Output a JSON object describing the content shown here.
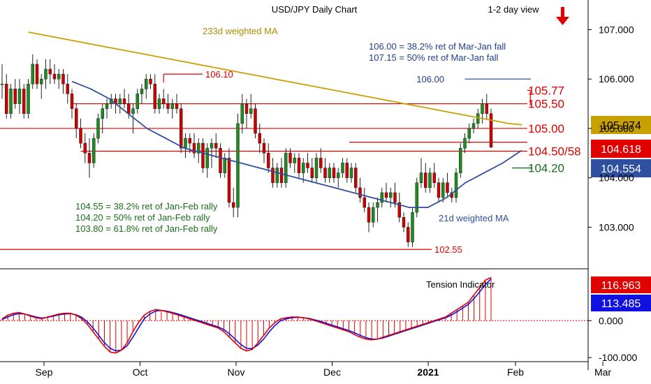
{
  "chart_data": [
    {
      "type": "candlestick",
      "title": "USD/JPY Daily Chart",
      "subtitle": "1-2 day view",
      "ylim": [
        102.2,
        107.6
      ],
      "yticks": [
        "107.000",
        "106.000",
        "105.000",
        "104.000",
        "103.000"
      ],
      "ytick_values": [
        107,
        106,
        105,
        104,
        103
      ],
      "xticks": [
        {
          "label": "Sep",
          "bar": 8
        },
        {
          "label": "Oct",
          "bar": 30
        },
        {
          "label": "Nov",
          "bar": 52
        },
        {
          "label": "Dec",
          "bar": 74
        },
        {
          "label": "2021",
          "bar": 96
        },
        {
          "label": "Feb",
          "bar": 116
        },
        {
          "label": "Mar",
          "bar": 136
        }
      ],
      "price_tags": [
        {
          "value": 105.074,
          "label": "105.074",
          "color": "#c8a000",
          "text_color": "#000000"
        },
        {
          "value": 104.618,
          "label": "104.618",
          "color": "#e00000",
          "text_color": "#ffffff"
        },
        {
          "value": 104.554,
          "label": "104.554",
          "color": "#2f4f9f",
          "text_color": "#ffffff"
        }
      ],
      "levels": [
        {
          "value": 105.5,
          "label": "105.50",
          "color": "#e00000",
          "from_bar": 16
        },
        {
          "value": 105.0,
          "label": "105.00",
          "color": "#e00000",
          "from_bar": -2
        },
        {
          "value": 104.54,
          "label": "104.50/58",
          "color": "#e00000",
          "from_bar": 18
        },
        {
          "value": 102.55,
          "label": "102.55",
          "color": "#e00000",
          "from_bar": -2
        },
        {
          "value": 106.1,
          "label": "106.10",
          "color": "#e00000",
          "from_bar": 37
        },
        {
          "value": 105.77,
          "label": "105.77",
          "color": "#e00000",
          "from_bar": 121
        },
        {
          "value": 106.0,
          "label": "106.00",
          "color": "#1f3f8f",
          "from_bar": 106
        },
        {
          "value": 104.2,
          "label": "104.20",
          "color": "#1a6e1a",
          "from_bar": 120
        }
      ],
      "annotations": {
        "ma233_label": "233d weighted MA",
        "ma21_label": "21d weighted MA",
        "blue_notes": [
          "106.00 = 38.2% ret of Mar-Jan fall",
          "107.15 = 50% ret of Mar-Jan fall"
        ],
        "green_notes": [
          "104.55 = 38.2% ret of Jan-Feb rally",
          "104.20 = 50% ret of Jan-Feb rally",
          "103.80 = 61.8% ret of Jan-Feb rally"
        ]
      },
      "colors": {
        "up": "#1e8c1e",
        "down": "#d00000",
        "ma233": "#c8a000",
        "ma21": "#2f4f9f",
        "level": "#e00000"
      },
      "ohlc": [
        [
          105.9,
          106.3,
          105.6,
          105.9
        ],
        [
          105.9,
          106.1,
          105.2,
          105.3
        ],
        [
          105.3,
          105.9,
          105.2,
          105.8
        ],
        [
          105.8,
          106.0,
          105.4,
          105.5
        ],
        [
          105.5,
          106.0,
          105.3,
          105.8
        ],
        [
          105.8,
          105.9,
          105.2,
          105.3
        ],
        [
          105.3,
          106.0,
          105.2,
          105.9
        ],
        [
          105.9,
          106.5,
          105.8,
          106.3
        ],
        [
          106.3,
          106.4,
          105.8,
          105.9
        ],
        [
          105.9,
          106.1,
          105.6,
          106.0
        ],
        [
          106.0,
          106.4,
          105.8,
          106.2
        ],
        [
          106.2,
          106.4,
          105.9,
          106.1
        ],
        [
          106.1,
          106.3,
          105.9,
          106.0
        ],
        [
          106.0,
          106.2,
          105.8,
          106.1
        ],
        [
          106.1,
          106.2,
          105.7,
          105.9
        ],
        [
          105.9,
          106.1,
          105.5,
          105.7
        ],
        [
          105.7,
          105.8,
          105.2,
          105.4
        ],
        [
          105.4,
          105.5,
          104.8,
          105.0
        ],
        [
          105.0,
          105.2,
          104.6,
          104.7
        ],
        [
          104.7,
          104.9,
          104.3,
          104.5
        ],
        [
          104.5,
          104.8,
          104.0,
          104.3
        ],
        [
          104.3,
          104.9,
          104.2,
          104.8
        ],
        [
          104.8,
          105.3,
          104.7,
          105.2
        ],
        [
          105.2,
          105.5,
          104.9,
          105.4
        ],
        [
          105.4,
          105.6,
          105.2,
          105.5
        ],
        [
          105.5,
          105.7,
          105.4,
          105.6
        ],
        [
          105.6,
          105.7,
          105.3,
          105.5
        ],
        [
          105.5,
          105.7,
          105.3,
          105.6
        ],
        [
          105.6,
          105.8,
          105.4,
          105.5
        ],
        [
          105.5,
          105.7,
          105.2,
          105.3
        ],
        [
          105.3,
          105.5,
          104.9,
          105.4
        ],
        [
          105.4,
          105.8,
          105.3,
          105.7
        ],
        [
          105.7,
          105.9,
          105.5,
          105.8
        ],
        [
          105.8,
          106.1,
          105.6,
          106.0
        ],
        [
          106.0,
          106.1,
          105.8,
          105.9
        ],
        [
          105.9,
          106.1,
          105.3,
          105.4
        ],
        [
          105.4,
          105.7,
          105.3,
          105.6
        ],
        [
          105.6,
          105.8,
          105.4,
          105.5
        ],
        [
          105.5,
          105.7,
          105.3,
          105.4
        ],
        [
          105.4,
          105.6,
          105.2,
          105.5
        ],
        [
          105.5,
          105.7,
          105.3,
          105.4
        ],
        [
          105.4,
          105.5,
          104.5,
          104.6
        ],
        [
          104.6,
          104.9,
          104.4,
          104.8
        ],
        [
          104.8,
          104.9,
          104.5,
          104.7
        ],
        [
          104.7,
          104.9,
          104.4,
          104.5
        ],
        [
          104.5,
          104.8,
          104.3,
          104.7
        ],
        [
          104.7,
          104.8,
          104.1,
          104.2
        ],
        [
          104.2,
          104.7,
          104.0,
          104.6
        ],
        [
          104.6,
          104.8,
          104.2,
          104.7
        ],
        [
          104.7,
          104.9,
          104.4,
          104.6
        ],
        [
          104.6,
          104.7,
          104.0,
          104.1
        ],
        [
          104.1,
          104.5,
          104.0,
          104.4
        ],
        [
          104.4,
          104.6,
          103.4,
          103.5
        ],
        [
          103.5,
          103.8,
          103.2,
          103.4
        ],
        [
          103.4,
          105.3,
          103.2,
          105.1
        ],
        [
          105.1,
          105.7,
          104.9,
          105.5
        ],
        [
          105.5,
          105.6,
          105.0,
          105.3
        ],
        [
          105.3,
          105.7,
          105.2,
          105.4
        ],
        [
          105.4,
          105.5,
          104.8,
          104.9
        ],
        [
          104.9,
          105.1,
          104.5,
          104.7
        ],
        [
          104.7,
          104.8,
          104.3,
          104.5
        ],
        [
          104.5,
          104.7,
          104.1,
          104.2
        ],
        [
          104.2,
          104.4,
          103.8,
          103.9
        ],
        [
          103.9,
          104.3,
          103.8,
          104.2
        ],
        [
          104.2,
          104.4,
          103.8,
          103.9
        ],
        [
          103.9,
          104.6,
          103.8,
          104.5
        ],
        [
          104.5,
          104.6,
          104.2,
          104.3
        ],
        [
          104.3,
          104.5,
          104.1,
          104.4
        ],
        [
          104.4,
          104.5,
          104.0,
          104.1
        ],
        [
          104.1,
          104.4,
          103.9,
          104.3
        ],
        [
          104.3,
          104.5,
          104.1,
          104.2
        ],
        [
          104.2,
          104.4,
          103.9,
          104.0
        ],
        [
          104.0,
          104.5,
          103.9,
          104.4
        ],
        [
          104.4,
          104.6,
          104.1,
          104.2
        ],
        [
          104.2,
          104.4,
          103.9,
          104.0
        ],
        [
          104.0,
          104.3,
          103.9,
          104.2
        ],
        [
          104.2,
          104.3,
          103.9,
          104.0
        ],
        [
          104.0,
          104.2,
          103.8,
          104.1
        ],
        [
          104.1,
          104.4,
          104.0,
          104.3
        ],
        [
          104.3,
          104.4,
          103.9,
          104.0
        ],
        [
          104.0,
          104.3,
          103.9,
          104.2
        ],
        [
          104.2,
          104.3,
          103.7,
          103.8
        ],
        [
          103.8,
          104.0,
          103.5,
          103.6
        ],
        [
          103.6,
          103.8,
          103.3,
          103.4
        ],
        [
          103.4,
          103.5,
          102.9,
          103.1
        ],
        [
          103.1,
          103.5,
          103.0,
          103.4
        ],
        [
          103.4,
          103.6,
          103.1,
          103.5
        ],
        [
          103.5,
          103.8,
          103.4,
          103.7
        ],
        [
          103.7,
          103.9,
          103.5,
          103.6
        ],
        [
          103.6,
          103.8,
          103.4,
          103.7
        ],
        [
          103.7,
          103.9,
          103.4,
          103.5
        ],
        [
          103.5,
          103.7,
          103.1,
          103.2
        ],
        [
          103.2,
          103.3,
          102.9,
          103.0
        ],
        [
          103.0,
          103.1,
          102.6,
          102.7
        ],
        [
          102.7,
          103.4,
          102.6,
          103.3
        ],
        [
          103.3,
          104.0,
          103.2,
          103.9
        ],
        [
          103.9,
          104.4,
          103.8,
          104.1
        ],
        [
          104.1,
          104.3,
          103.7,
          103.8
        ],
        [
          103.8,
          104.2,
          103.7,
          104.1
        ],
        [
          104.1,
          104.3,
          103.8,
          103.9
        ],
        [
          103.9,
          104.0,
          103.5,
          103.6
        ],
        [
          103.6,
          104.0,
          103.5,
          103.9
        ],
        [
          103.9,
          104.1,
          103.6,
          103.7
        ],
        [
          103.7,
          103.8,
          103.5,
          103.6
        ],
        [
          103.6,
          104.2,
          103.5,
          104.1
        ],
        [
          104.1,
          104.7,
          104.0,
          104.6
        ],
        [
          104.6,
          104.9,
          104.5,
          104.8
        ],
        [
          104.8,
          105.1,
          104.7,
          105.0
        ],
        [
          105.0,
          105.2,
          104.9,
          105.1
        ],
        [
          105.1,
          105.4,
          105.0,
          105.3
        ],
        [
          105.3,
          105.6,
          105.1,
          105.5
        ],
        [
          105.5,
          105.7,
          105.2,
          105.3
        ],
        [
          105.3,
          105.4,
          104.6,
          104.62
        ]
      ],
      "ma233": [
        106.95,
        106.9,
        106.85,
        106.8,
        106.75,
        106.7,
        106.65,
        106.6,
        106.55,
        106.5,
        106.45,
        106.4,
        106.35,
        106.3,
        106.25,
        106.2,
        106.15,
        106.1,
        106.05,
        106.0,
        105.95,
        105.9,
        105.85,
        105.8,
        105.75,
        105.7,
        105.65,
        105.6,
        105.55,
        105.5,
        105.45,
        105.4,
        105.35,
        105.3,
        105.25,
        105.2,
        105.15,
        105.1,
        105.074
      ],
      "ma21": [
        105.95,
        105.8,
        105.6,
        105.3,
        105.0,
        104.8,
        104.6,
        104.5,
        104.4,
        104.3,
        104.2,
        104.1,
        104.0,
        103.9,
        103.8,
        103.7,
        103.6,
        103.5,
        103.4,
        103.4,
        103.6,
        103.9,
        104.1,
        104.3,
        104.554
      ]
    },
    {
      "type": "oscillator",
      "title": "Tension Indicator",
      "ylim": [
        -115,
        135
      ],
      "yticks": [
        "0.000",
        "-100.000"
      ],
      "ytick_values": [
        0,
        -100
      ],
      "price_tags": [
        {
          "value": 116.963,
          "label": "116.963",
          "color": "#e00000",
          "text_color": "#ffffff"
        },
        {
          "value": 113.485,
          "label": "113.485",
          "color": "#1010e0",
          "text_color": "#ffffff"
        }
      ],
      "series": [
        {
          "values": [
            5,
            15,
            20,
            22,
            18,
            12,
            8,
            5,
            10,
            14,
            18,
            20,
            20,
            15,
            5,
            -10,
            -30,
            -50,
            -70,
            -85,
            -88,
            -80,
            -60,
            -30,
            -5,
            15,
            25,
            30,
            28,
            24,
            20,
            15,
            10,
            5,
            0,
            -5,
            -10,
            -15,
            -20,
            -30,
            -45,
            -60,
            -75,
            -82,
            -78,
            -60,
            -40,
            -20,
            -5,
            5,
            8,
            10,
            10,
            8,
            5,
            0,
            -5,
            -10,
            -15,
            -20,
            -25,
            -30,
            -38,
            -45,
            -50,
            -52,
            -50,
            -45,
            -40,
            -35,
            -30,
            -25,
            -20,
            -15,
            -10,
            -5,
            0,
            5,
            10,
            20,
            30,
            40,
            50,
            70,
            90,
            110,
            116.963
          ]
        },
        {
          "values": [
            3,
            10,
            16,
            19,
            18,
            14,
            10,
            7,
            9,
            12,
            16,
            18,
            19,
            16,
            9,
            -3,
            -20,
            -40,
            -60,
            -75,
            -82,
            -80,
            -68,
            -45,
            -20,
            5,
            18,
            26,
            28,
            26,
            22,
            18,
            13,
            8,
            3,
            -2,
            -7,
            -12,
            -17,
            -24,
            -36,
            -50,
            -65,
            -75,
            -76,
            -66,
            -50,
            -30,
            -13,
            0,
            5,
            8,
            9,
            8,
            6,
            2,
            -2,
            -7,
            -12,
            -17,
            -22,
            -27,
            -33,
            -40,
            -46,
            -50,
            -50,
            -47,
            -42,
            -37,
            -32,
            -27,
            -22,
            -17,
            -12,
            -7,
            -2,
            3,
            8,
            15,
            24,
            34,
            44,
            60,
            78,
            98,
            113.485
          ]
        }
      ],
      "colors": {
        "fast": "#e00000",
        "slow": "#1010e0",
        "hist": "#e00000"
      }
    }
  ]
}
